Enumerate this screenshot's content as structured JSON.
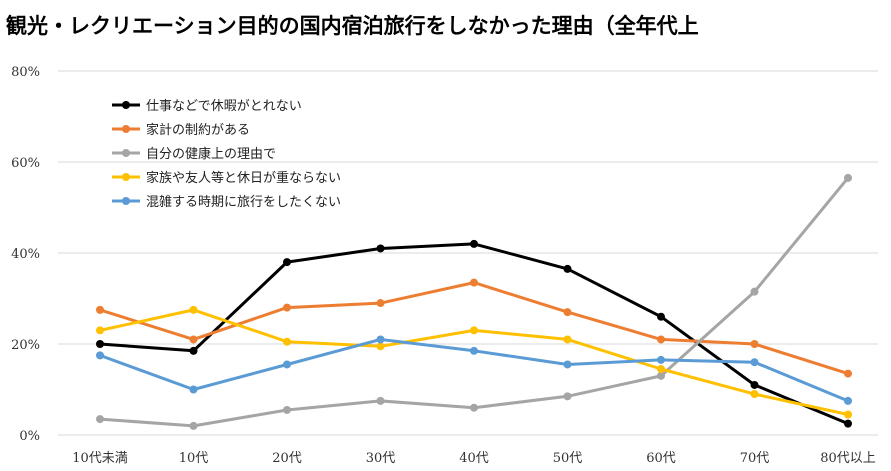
{
  "chart_data": {
    "type": "line",
    "title": "観光・レクリエーション目的の国内宿泊旅行をしなかった理由（全年代上",
    "categories": [
      "10代未満",
      "10代",
      "20代",
      "30代",
      "40代",
      "50代",
      "60代",
      "70代",
      "80代以上"
    ],
    "ylim": [
      0,
      80
    ],
    "yticks": [
      "0%",
      "20%",
      "40%",
      "60%",
      "80%"
    ],
    "grid": true,
    "legend_position": "top-left",
    "series": [
      {
        "name": "仕事などで休暇がとれない",
        "color": "#000000",
        "values": [
          20,
          18.5,
          38,
          41,
          42,
          36.5,
          26,
          11,
          2.5
        ]
      },
      {
        "name": "家計の制約がある",
        "color": "#ED7D31",
        "values": [
          27.5,
          21,
          28,
          29,
          33.5,
          27,
          21,
          20,
          13.5
        ]
      },
      {
        "name": "自分の健康上の理由で",
        "color": "#A5A5A5",
        "values": [
          3.5,
          2,
          5.5,
          7.5,
          6,
          8.5,
          13,
          31.5,
          56.5
        ]
      },
      {
        "name": "家族や友人等と休日が重ならない",
        "color": "#FFC000",
        "values": [
          23,
          27.5,
          20.5,
          19.5,
          23,
          21,
          14.5,
          9,
          4.5
        ]
      },
      {
        "name": "混雑する時期に旅行をしたくない",
        "color": "#5B9BD5",
        "values": [
          17.5,
          10,
          15.5,
          21,
          18.5,
          15.5,
          16.5,
          16,
          7.5
        ]
      }
    ]
  }
}
